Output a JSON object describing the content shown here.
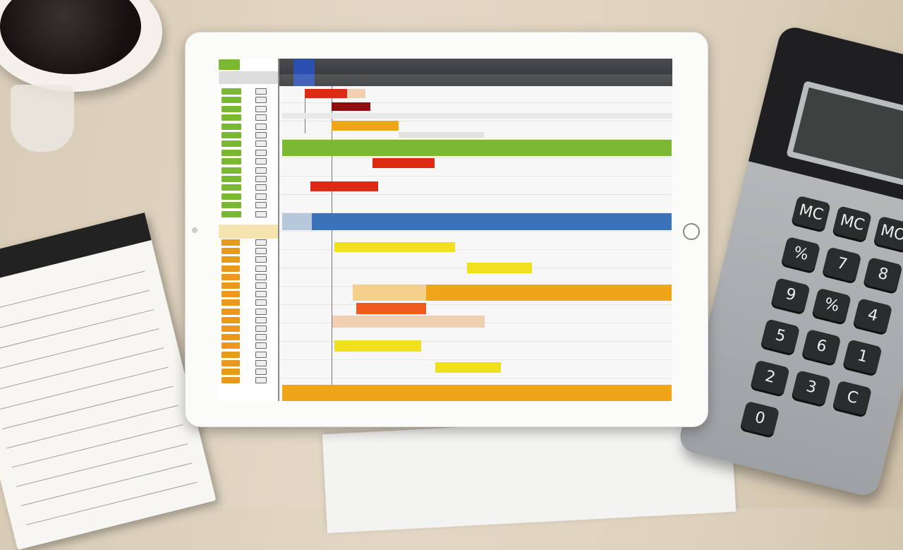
{
  "scene": {
    "background": "#ddd2bd",
    "objects": [
      "coffee-cup",
      "notebook",
      "calculator",
      "paper-sheets",
      "tablet"
    ]
  },
  "calculator": {
    "keys": [
      "MC",
      "MC",
      "MO",
      "%",
      "7",
      "8",
      "9",
      "%",
      "4",
      "5",
      "6",
      "1",
      "2",
      "3",
      "C",
      "0"
    ]
  },
  "gantt": {
    "colors": {
      "green": "#7ab834",
      "red": "#dd2a14",
      "dark_red": "#8b1010",
      "orange": "#f0a418",
      "blue": "#3a73b8",
      "yellow": "#f0e01e",
      "orange_red": "#f05a1e",
      "peach": "#f0cfb0",
      "header": "#3a3c40"
    },
    "group_colors": [
      "#7ab834",
      "#e99a1c"
    ]
  }
}
